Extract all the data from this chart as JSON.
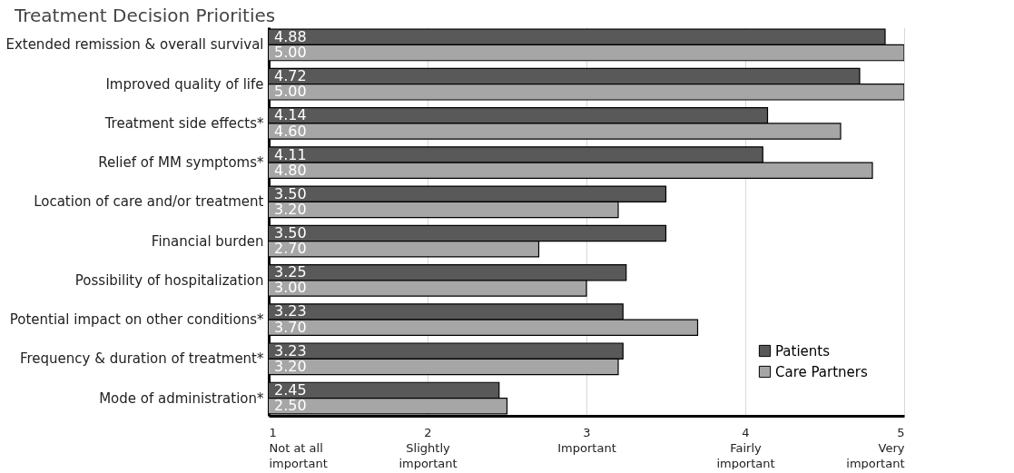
{
  "chart_data": {
    "type": "bar",
    "orientation": "horizontal",
    "title": "Treatment Decision Priorities",
    "categories": [
      "Extended remission & overall survival",
      "Improved quality of life",
      "Treatment side effects*",
      "Relief of MM symptoms*",
      "Location of care and/or treatment",
      "Financial burden",
      "Possibility of hospitalization",
      "Potential impact on other conditions*",
      "Frequency & duration of treatment*",
      "Mode of administration*"
    ],
    "series": [
      {
        "name": "Patients",
        "color": "#595959",
        "values": [
          4.88,
          4.72,
          4.14,
          4.11,
          3.5,
          3.5,
          3.25,
          3.23,
          3.23,
          2.45
        ],
        "value_labels": [
          "4.88",
          "4.72",
          "4.14",
          "4.11",
          "3.50",
          "3.50",
          "3.25",
          "3.23",
          "3.23",
          "2.45"
        ]
      },
      {
        "name": "Care Partners",
        "color": "#a6a6a6",
        "values": [
          5.0,
          5.0,
          4.6,
          4.8,
          3.2,
          2.7,
          3.0,
          3.7,
          3.2,
          2.5
        ],
        "value_labels": [
          "5.00",
          "5.00",
          "4.60",
          "4.80",
          "3.20",
          "2.70",
          "3.00",
          "3.70",
          "3.20",
          "2.50"
        ]
      }
    ],
    "xlim": [
      1,
      5
    ],
    "xticks": [
      {
        "value": 1,
        "label": "1\nNot at all\nimportant"
      },
      {
        "value": 2,
        "label": "2\nSlightly\nimportant"
      },
      {
        "value": 3,
        "label": "3\nImportant"
      },
      {
        "value": 4,
        "label": "4\nFairly\nimportant"
      },
      {
        "value": 5,
        "label": "5\nVery\nimportant"
      }
    ],
    "grid": "x",
    "legend": "bottom right"
  }
}
